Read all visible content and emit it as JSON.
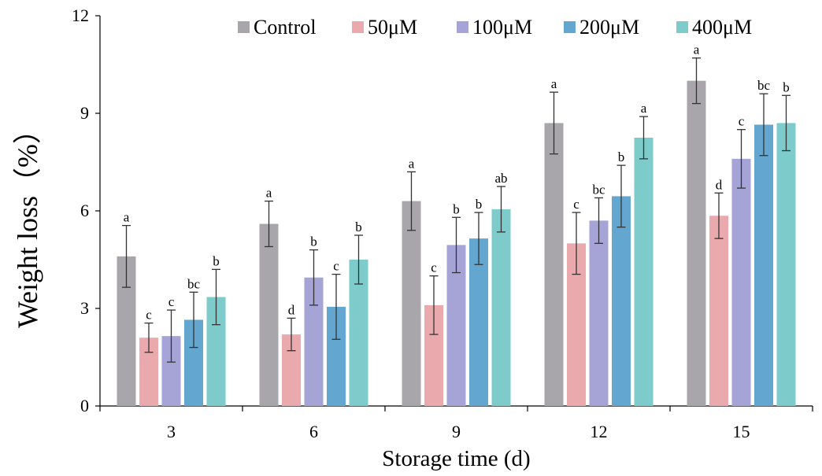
{
  "chart_data": {
    "type": "bar",
    "xlabel": "Storage time (d)",
    "ylabel": "Weight loss（%）",
    "ylim": [
      0,
      12
    ],
    "yticks": [
      "0",
      "3",
      "6",
      "9",
      "12"
    ],
    "categories": [
      "3",
      "6",
      "9",
      "12",
      "15"
    ],
    "legend_position": "top-right",
    "grid": false,
    "series": [
      {
        "name": "Control",
        "color": "#a8a6ab",
        "values": [
          4.6,
          5.6,
          6.3,
          8.7,
          10.0
        ],
        "errors": [
          0.95,
          0.7,
          0.9,
          0.95,
          0.7
        ],
        "labels": [
          "a",
          "a",
          "a",
          "a",
          "a"
        ]
      },
      {
        "name": "50μM",
        "color": "#e9a9ad",
        "values": [
          2.1,
          2.2,
          3.1,
          5.0,
          5.85
        ],
        "errors": [
          0.45,
          0.5,
          0.9,
          0.95,
          0.7
        ],
        "labels": [
          "c",
          "d",
          "c",
          "c",
          "d"
        ]
      },
      {
        "name": "100μM",
        "color": "#a6a3d6",
        "values": [
          2.15,
          3.95,
          4.95,
          5.7,
          7.6
        ],
        "errors": [
          0.8,
          0.85,
          0.85,
          0.7,
          0.9
        ],
        "labels": [
          "c",
          "b",
          "b",
          "bc",
          "c"
        ]
      },
      {
        "name": "200μM",
        "color": "#63a6cf",
        "values": [
          2.65,
          3.05,
          5.15,
          6.45,
          8.65
        ],
        "errors": [
          0.85,
          1.0,
          0.8,
          0.95,
          0.95
        ],
        "labels": [
          "bc",
          "c",
          "b",
          "b",
          "bc"
        ]
      },
      {
        "name": "400μM",
        "color": "#7dcbcb",
        "values": [
          3.35,
          4.5,
          6.05,
          8.25,
          8.7
        ],
        "errors": [
          0.85,
          0.75,
          0.7,
          0.65,
          0.85
        ],
        "labels": [
          "b",
          "b",
          "ab",
          "a",
          "b"
        ]
      }
    ]
  }
}
